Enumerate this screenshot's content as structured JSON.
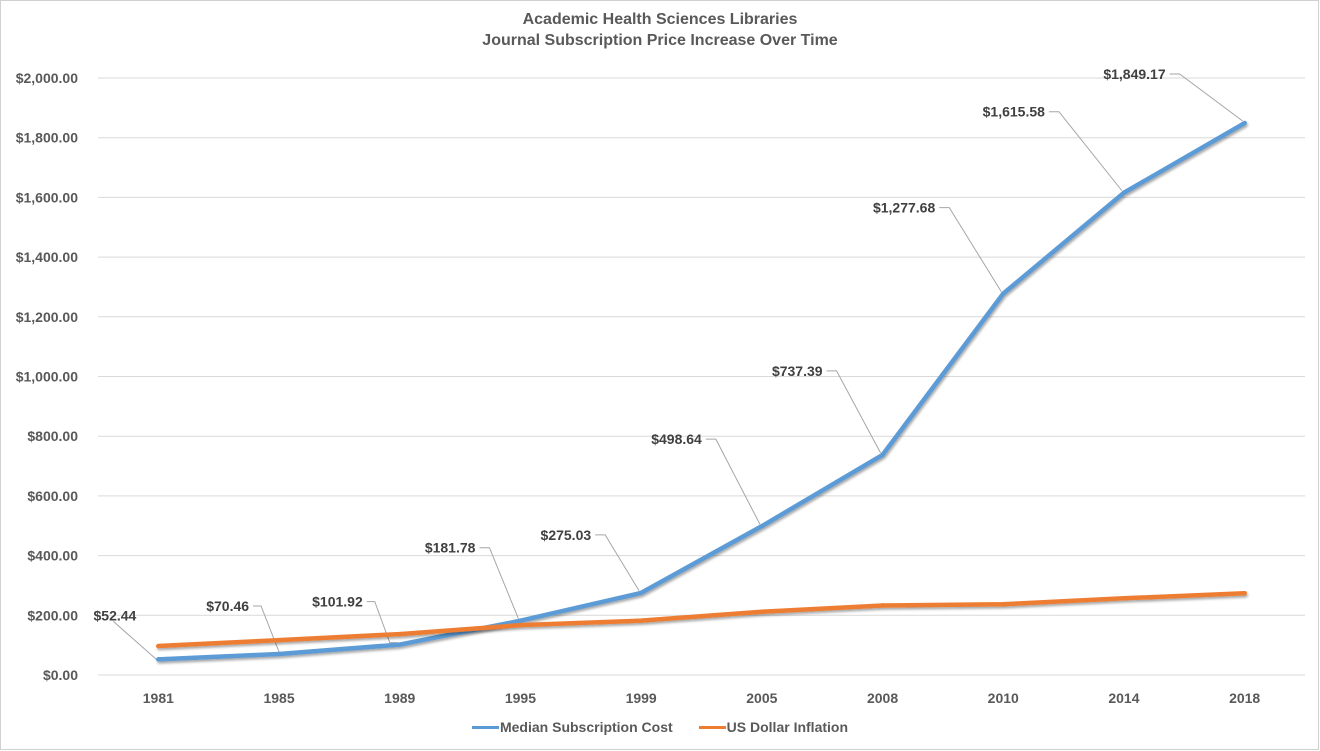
{
  "chart_data": {
    "type": "line",
    "title": "Academic Health Sciences Libraries",
    "subtitle": "Journal Subscription Price Increase Over Time",
    "xlabel": "",
    "ylabel": "",
    "categories": [
      "1981",
      "1985",
      "1989",
      "1995",
      "1999",
      "2005",
      "2008",
      "2010",
      "2014",
      "2018"
    ],
    "ylim": [
      0,
      2000
    ],
    "yticks": [
      {
        "value": 0,
        "label": "$0.00"
      },
      {
        "value": 200,
        "label": "$200.00"
      },
      {
        "value": 400,
        "label": "$400.00"
      },
      {
        "value": 600,
        "label": "$600.00"
      },
      {
        "value": 800,
        "label": "$800.00"
      },
      {
        "value": 1000,
        "label": "$1,000.00"
      },
      {
        "value": 1200,
        "label": "$1,200.00"
      },
      {
        "value": 1400,
        "label": "$1,400.00"
      },
      {
        "value": 1600,
        "label": "$1,600.00"
      },
      {
        "value": 1800,
        "label": "$1,800.00"
      },
      {
        "value": 2000,
        "label": "$2,000.00"
      }
    ],
    "grid": true,
    "legend_position": "bottom",
    "series": [
      {
        "name": "Median Subscription Cost",
        "color": "#5b9bd5",
        "values": [
          52.44,
          70.46,
          101.92,
          181.78,
          275.03,
          498.64,
          737.39,
          1277.68,
          1615.58,
          1849.17
        ],
        "data_labels": [
          "$52.44",
          "$70.46",
          "$101.92",
          "$181.78",
          "$275.03",
          "$498.64",
          "$737.39",
          "$1,277.68",
          "$1,615.58",
          "$1,849.17"
        ]
      },
      {
        "name": "US Dollar Inflation",
        "color": "#ed7d31",
        "values": [
          97,
          117,
          137,
          167,
          182,
          212,
          233,
          237,
          257,
          274
        ]
      }
    ]
  }
}
